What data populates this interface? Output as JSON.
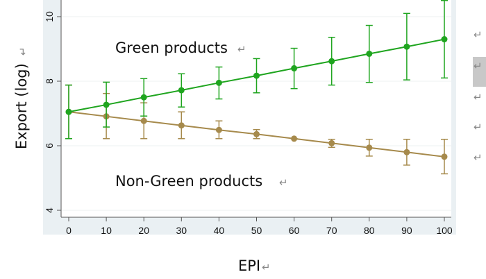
{
  "chart_data": {
    "type": "line",
    "title": "",
    "xlabel": "EPI",
    "ylabel": "Export (log)",
    "x": [
      0,
      10,
      20,
      30,
      40,
      50,
      60,
      70,
      80,
      90,
      100
    ],
    "xlim": [
      0,
      100
    ],
    "ylim": [
      4,
      10.5
    ],
    "xticks": [
      "0",
      "10",
      "20",
      "30",
      "40",
      "50",
      "60",
      "70",
      "80",
      "90",
      "100"
    ],
    "yticks": [
      "4",
      "6",
      "8",
      "10"
    ],
    "grid": true,
    "annotations": [
      "Green products",
      "Non-Green products"
    ],
    "series": [
      {
        "name": "Green products",
        "color": "#1fa51f",
        "values": [
          7.05,
          7.27,
          7.5,
          7.72,
          7.95,
          8.17,
          8.4,
          8.62,
          8.85,
          9.07,
          9.3
        ],
        "ci_low": [
          6.22,
          6.58,
          6.92,
          7.2,
          7.45,
          7.64,
          7.77,
          7.88,
          7.96,
          8.04,
          8.1
        ],
        "ci_high": [
          7.88,
          7.97,
          8.08,
          8.23,
          8.44,
          8.7,
          9.02,
          9.36,
          9.73,
          10.1,
          10.5
        ]
      },
      {
        "name": "Non-Green products",
        "color": "#a68a4c",
        "values": [
          7.05,
          6.91,
          6.77,
          6.63,
          6.49,
          6.36,
          6.22,
          6.08,
          5.94,
          5.8,
          5.66
        ],
        "ci_low": [
          6.22,
          6.22,
          6.22,
          6.22,
          6.22,
          6.22,
          6.22,
          5.95,
          5.68,
          5.4,
          5.13
        ],
        "ci_high": [
          7.88,
          7.62,
          7.33,
          7.05,
          6.77,
          6.5,
          6.22,
          6.2,
          6.2,
          6.2,
          6.2
        ]
      }
    ]
  },
  "document": {
    "paragraph_mark": "↵"
  }
}
